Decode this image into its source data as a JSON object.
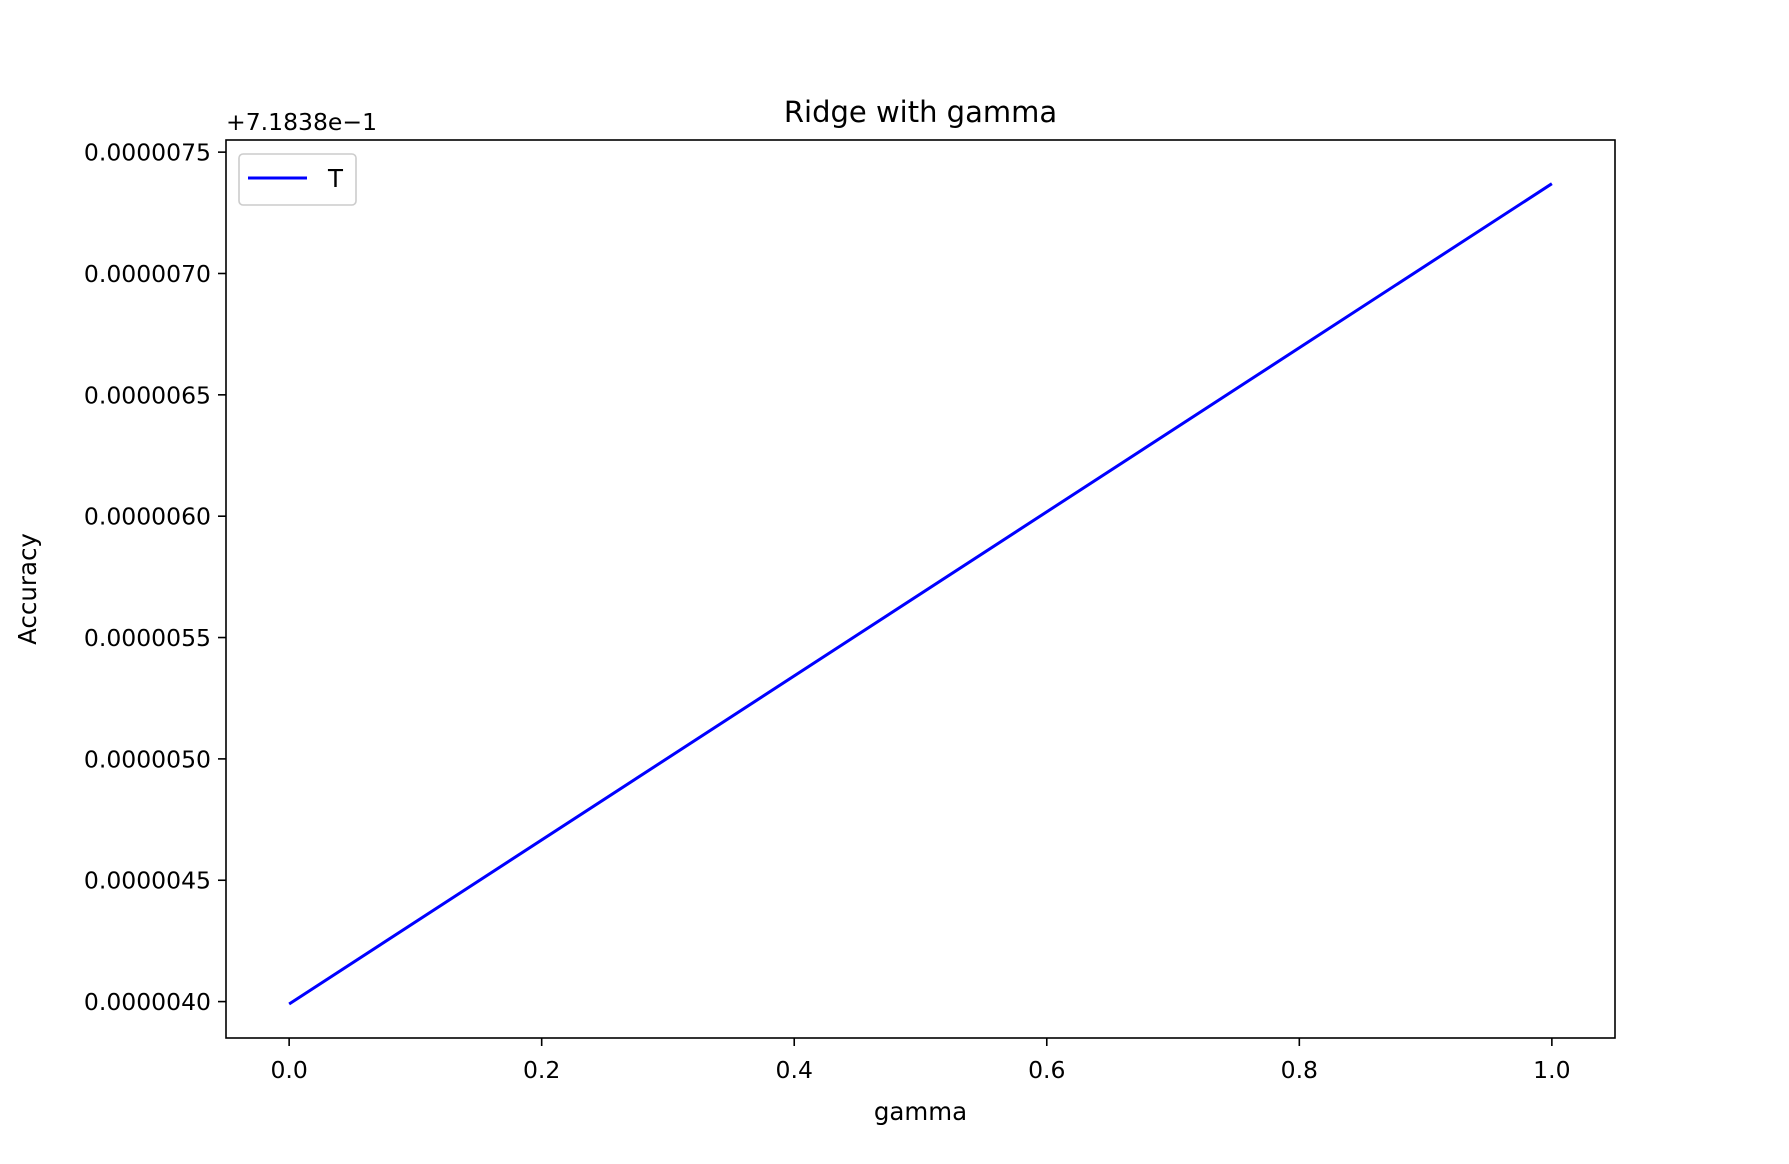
{
  "chart_data": {
    "type": "line",
    "title": "Ridge with gamma",
    "xlabel": "gamma",
    "ylabel": "Accuracy",
    "y_offset_label": "+7.1838e−1",
    "xlim": [
      -0.05,
      1.05
    ],
    "ylim": [
      3.85e-06,
      7.55e-06
    ],
    "xticks": [
      {
        "value": 0.0,
        "label": "0.0"
      },
      {
        "value": 0.2,
        "label": "0.2"
      },
      {
        "value": 0.4,
        "label": "0.4"
      },
      {
        "value": 0.6,
        "label": "0.6"
      },
      {
        "value": 0.8,
        "label": "0.8"
      },
      {
        "value": 1.0,
        "label": "1.0"
      }
    ],
    "yticks": [
      {
        "value": 4e-06,
        "label": "0.0000040"
      },
      {
        "value": 4.5e-06,
        "label": "0.0000045"
      },
      {
        "value": 5e-06,
        "label": "0.0000050"
      },
      {
        "value": 5.5e-06,
        "label": "0.0000055"
      },
      {
        "value": 6e-06,
        "label": "0.0000060"
      },
      {
        "value": 6.5e-06,
        "label": "0.0000065"
      },
      {
        "value": 7e-06,
        "label": "0.0000070"
      },
      {
        "value": 7.5e-06,
        "label": "0.0000075"
      }
    ],
    "grid": false,
    "legend_position": "upper-left",
    "series": [
      {
        "name": "T",
        "color": "#0000ff",
        "x": [
          0.0,
          1.0
        ],
        "y": [
          3.99e-06,
          7.37e-06
        ]
      }
    ]
  }
}
